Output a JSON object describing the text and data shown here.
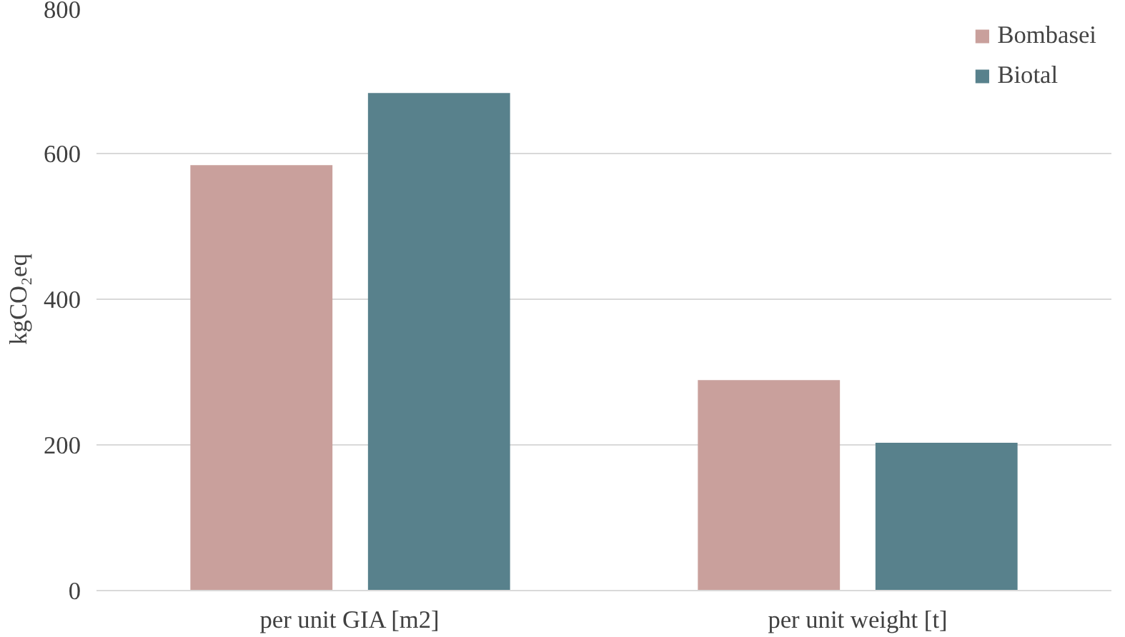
{
  "chart_data": {
    "type": "bar",
    "ylabel": "kgCO₂eq",
    "categories": [
      "per unit GIA [m2]",
      "per unit weight [t]"
    ],
    "series": [
      {
        "name": "Bombasei",
        "color": "#c9a09c",
        "values": [
          584,
          289
        ]
      },
      {
        "name": "Biotal",
        "color": "#58818c",
        "values": [
          683,
          203
        ]
      }
    ],
    "ylim": [
      0,
      800
    ],
    "yticks": [
      0,
      200,
      400,
      600,
      800
    ],
    "grid": "y",
    "legend": "top right"
  }
}
